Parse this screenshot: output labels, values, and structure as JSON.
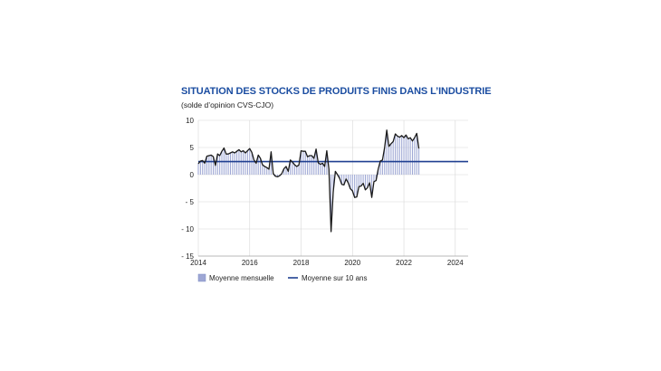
{
  "colors": {
    "title": "#1b4da1",
    "bar": "#9ea7d4",
    "bar_edge": "#7f89c4",
    "line": "#1a1a1a",
    "average": "#1f3f91"
  },
  "chart_data": {
    "type": "bar",
    "title": "SITUATION DES STOCKS DE PRODUITS FINIS DANS L’INDUSTRIE",
    "subtitle": "(solde d’opinion CVS-CJO)",
    "x_range": [
      "2014-01",
      "2024-06"
    ],
    "ylim": [
      -15,
      10
    ],
    "yticks": [
      "10",
      "5",
      "0",
      "- 5",
      "- 10",
      "- 15"
    ],
    "ytick_values": [
      10,
      5,
      0,
      -5,
      -10,
      -15
    ],
    "xticks": [
      "2014",
      "2016",
      "2018",
      "2020",
      "2022",
      "2024"
    ],
    "xtick_values": [
      2014,
      2016,
      2018,
      2020,
      2022,
      2024
    ],
    "grid": true,
    "legend_position": "bottom",
    "series": [
      {
        "name": "Moyenne mensuelle",
        "style": "bar+line",
        "start": "2014-01",
        "frequency": "monthly",
        "values": [
          2.0,
          2.5,
          2.6,
          2.1,
          3.4,
          3.5,
          3.6,
          3.3,
          1.7,
          3.8,
          3.5,
          4.3,
          4.9,
          3.8,
          3.8,
          4.0,
          4.2,
          4.0,
          4.3,
          4.6,
          4.2,
          4.4,
          4.0,
          4.4,
          4.8,
          4.1,
          2.7,
          2.1,
          3.6,
          3.0,
          1.8,
          1.5,
          1.3,
          1.0,
          4.2,
          0.2,
          -0.3,
          -0.4,
          -0.2,
          0.2,
          1.1,
          1.5,
          0.6,
          2.7,
          2.3,
          1.8,
          1.5,
          1.8,
          4.4,
          4.3,
          4.3,
          3.3,
          3.5,
          3.5,
          3.0,
          4.7,
          2.2,
          1.9,
          2.1,
          1.5,
          4.4,
          1.0,
          -10.5,
          -3.2,
          0.6,
          0.0,
          -0.7,
          -1.8,
          -1.9,
          -0.8,
          -1.5,
          -2.6,
          -3.0,
          -4.2,
          -4.1,
          -2.2,
          -2.1,
          -1.6,
          -2.8,
          -2.4,
          -1.5,
          -4.2,
          -1.3,
          -1.1,
          1.0,
          2.5,
          2.7,
          5.0,
          8.2,
          5.2,
          5.7,
          6.1,
          7.5,
          7.1,
          6.9,
          7.2,
          6.8,
          7.3,
          6.6,
          6.8,
          6.2,
          6.8,
          7.6,
          4.8
        ]
      },
      {
        "name": "Moyenne sur 10 ans",
        "style": "line",
        "value": 2.4
      }
    ]
  },
  "legend": {
    "bars_label": "Moyenne mensuelle",
    "line_label": "Moyenne sur 10 ans"
  }
}
